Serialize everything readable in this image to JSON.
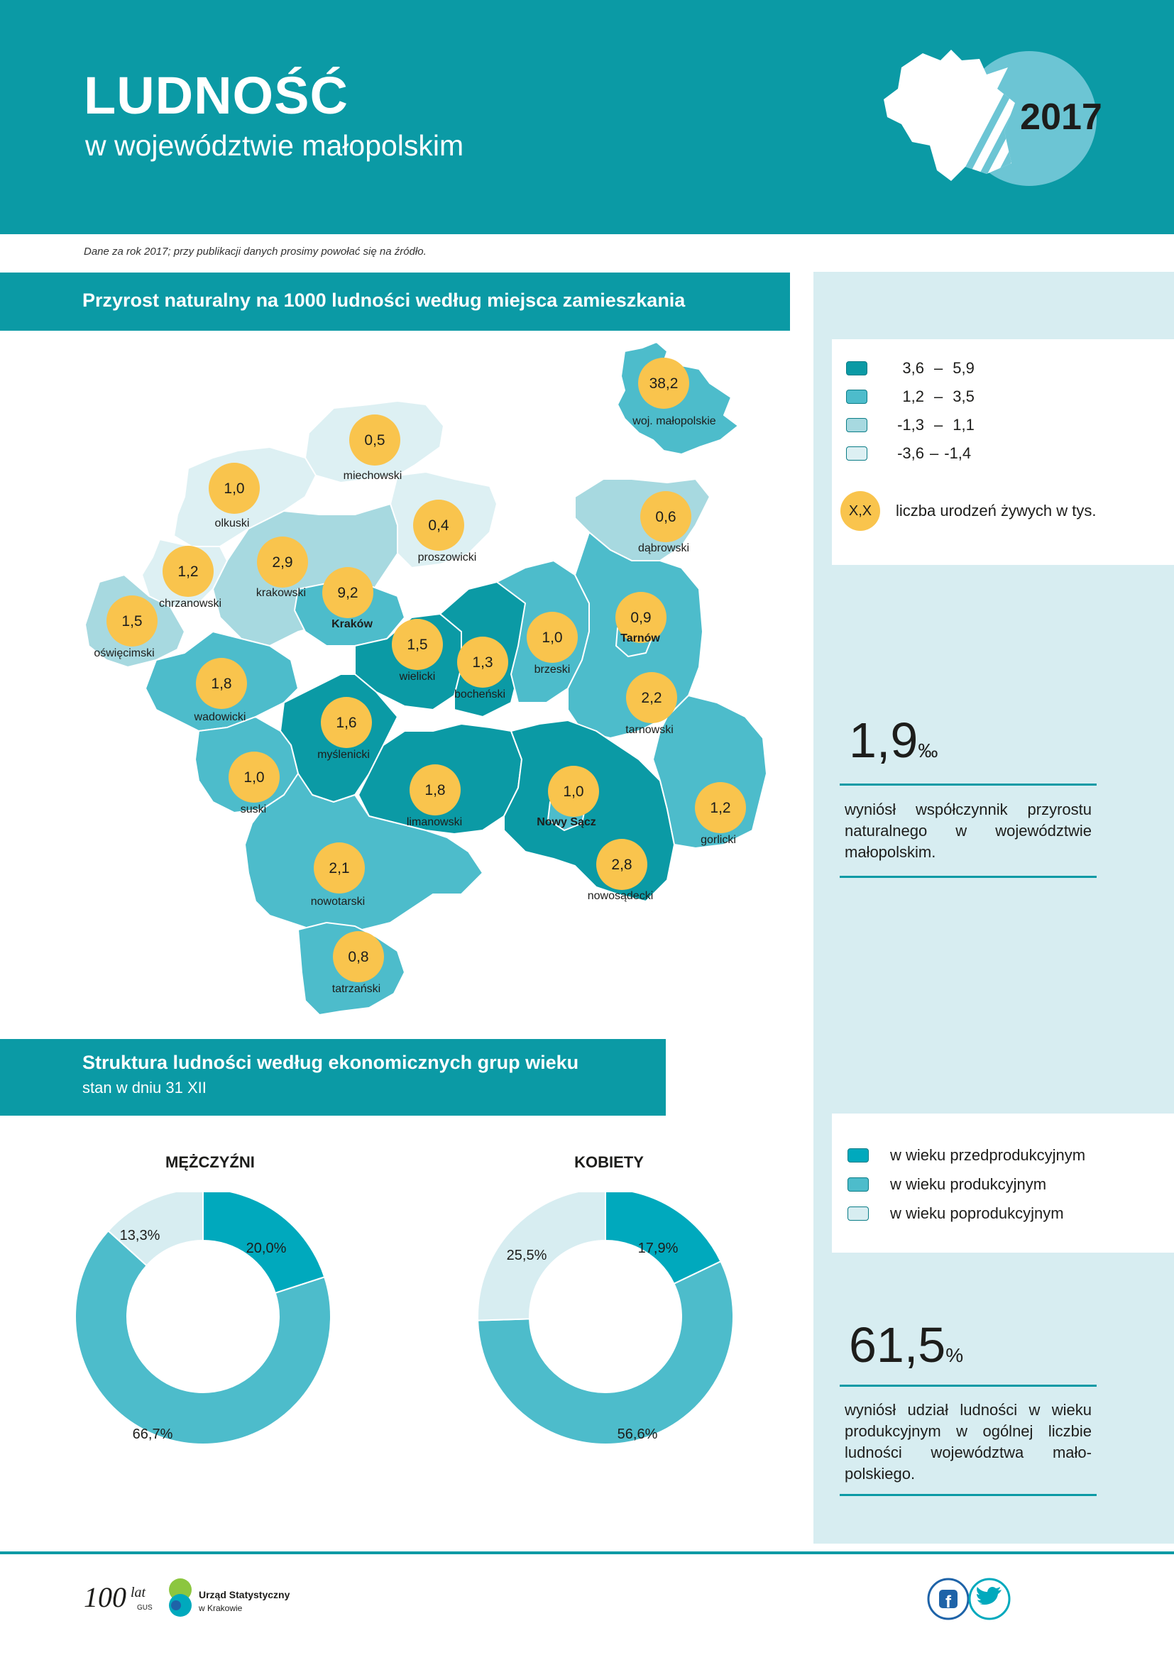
{
  "header": {
    "title": "LUDNOŚĆ",
    "subtitle": "w województwie małopolskim",
    "year": "2017"
  },
  "note": "Dane za rok 2017; przy publikacji danych prosimy powołać się na źródło.",
  "section1": {
    "title": "Przyrost naturalny na 1000 ludności według miejsca zamieszkania"
  },
  "legend_map": {
    "classes": [
      {
        "from": "3,6",
        "to": "5,9",
        "color": "#0b9aa5"
      },
      {
        "from": "1,2",
        "to": "3,5",
        "color": "#4dbccb"
      },
      {
        "from": "-1,3",
        "to": "1,1",
        "color": "#a7d9e0"
      },
      {
        "from": "-3,6",
        "to": "-1,4",
        "color": "#ddf0f3"
      }
    ],
    "bubble_symbol": "X,X",
    "bubble_text": "liczba urodzeń żywych w tys."
  },
  "map": {
    "counties": [
      {
        "name": "woj. małopolskie",
        "value": "38,2"
      },
      {
        "name": "miechowski",
        "value": "0,5"
      },
      {
        "name": "olkuski",
        "value": "1,0"
      },
      {
        "name": "proszowicki",
        "value": "0,4"
      },
      {
        "name": "dąbrowski",
        "value": "0,6"
      },
      {
        "name": "chrzanowski",
        "value": "1,2"
      },
      {
        "name": "krakowski",
        "value": "2,9"
      },
      {
        "name": "oświęcimski",
        "value": "1,5"
      },
      {
        "name": "wielicki",
        "value": "1,5"
      },
      {
        "name": "bocheński",
        "value": "1,3"
      },
      {
        "name": "brzeski",
        "value": "1,0"
      },
      {
        "name": "wadowicki",
        "value": "1,8"
      },
      {
        "name": "tarnowski",
        "value": "2,2"
      },
      {
        "name": "myślenicki",
        "value": "1,6"
      },
      {
        "name": "suski",
        "value": "1,0"
      },
      {
        "name": "limanowski",
        "value": "1,8"
      },
      {
        "name": "gorlicki",
        "value": "1,2"
      },
      {
        "name": "nowotarski",
        "value": "2,1"
      },
      {
        "name": "nowosądecki",
        "value": "2,8"
      },
      {
        "name": "tatrzański",
        "value": "0,8"
      }
    ],
    "cities": [
      {
        "name": "Kraków",
        "value": "9,2"
      },
      {
        "name": "Tarnów",
        "value": "0,9"
      },
      {
        "name": "Nowy Sącz",
        "value": "1,0"
      }
    ]
  },
  "stat1": {
    "value": "1,9",
    "unit": "‰",
    "text": "wyniósł współczynnik przyrostu naturalnego w województwie małopolskim."
  },
  "section2": {
    "title": "Struktura ludności według ekonomicznych grup wieku",
    "subtitle": "stan w dniu 31 XII"
  },
  "legend_age": [
    {
      "label": "w wieku przedprodukcyjnym",
      "color": "#00a9bd"
    },
    {
      "label": "w wieku produkcyjnym",
      "color": "#4dbccb"
    },
    {
      "label": "w wieku poprodukcyjnym",
      "color": "#d7edf1"
    }
  ],
  "chart_data": [
    {
      "type": "pie",
      "title": "MĘŻCZYŹNI",
      "categories": [
        "w wieku przedprodukcyjnym",
        "w wieku produkcyjnym",
        "w wieku poprodukcyjnym"
      ],
      "values": [
        20.0,
        66.7,
        13.3
      ],
      "labels": [
        "20,0%",
        "66,7%",
        "13,3%"
      ]
    },
    {
      "type": "pie",
      "title": "KOBIETY",
      "categories": [
        "w wieku przedprodukcyjnym",
        "w wieku produkcyjnym",
        "w wieku poprodukcyjnym"
      ],
      "values": [
        17.9,
        56.6,
        25.5
      ],
      "labels": [
        "17,9%",
        "56,6%",
        "25,5%"
      ]
    }
  ],
  "stat2": {
    "value": "61,5",
    "unit": "%",
    "text": "wyniósł udział ludności w wieku produkcyjnym w ogólnej liczbie ludności województwa mało-polskiego."
  },
  "footer": {
    "gus_logo_text": "100 lat GUS",
    "office_name_line1": "Urząd Statystyczny",
    "office_name_line2": "w Krakowie"
  }
}
